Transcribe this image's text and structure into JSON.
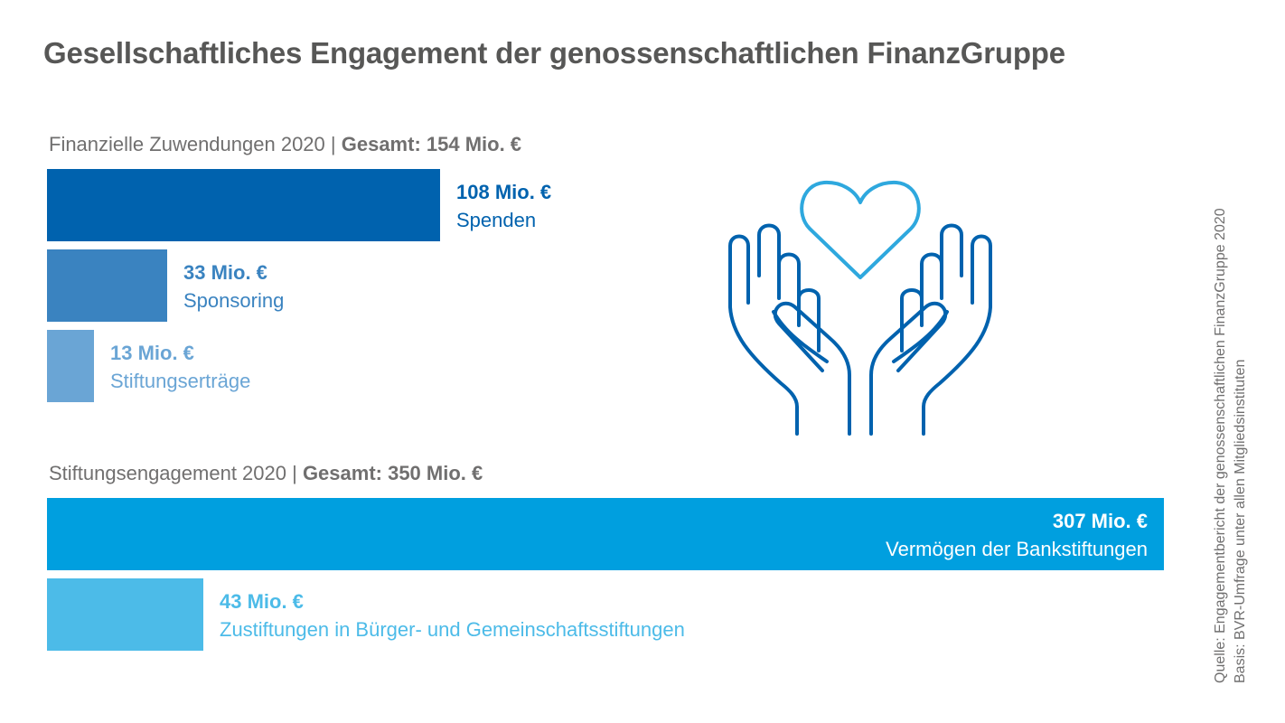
{
  "title": "Gesellschaftliches Engagement der genossenschaftlichen FinanzGruppe",
  "icon": "heart-in-hands-icon",
  "colors": {
    "spenden": "#0062ae",
    "sponsoring": "#3a83c0",
    "stiftungsertraege": "#6aa5d5",
    "bankstiftungen": "#009fdf",
    "zustiftungen": "#4cbbe8",
    "title_text": "#575756",
    "muted_text": "#706f6f"
  },
  "source": {
    "line1": "Quelle: Engagementbericht der genossenschaftlichen FinanzGruppe 2020",
    "line2": "Basis: BVR-Umfrage unter allen Mitgliedsinstituten"
  },
  "chart_data": [
    {
      "type": "bar",
      "orientation": "horizontal",
      "title": "Finanzielle Zuwendungen 2020",
      "total_label": "Gesamt: 154 Mio. €",
      "unit": "Mio. €",
      "categories": [
        "Spenden",
        "Sponsoring",
        "Stiftungserträge"
      ],
      "values": [
        108,
        33,
        13
      ],
      "value_labels": [
        "108 Mio. €",
        "33 Mio. €",
        "13 Mio. €"
      ],
      "colors": [
        "#0062ae",
        "#3a83c0",
        "#6aa5d5"
      ]
    },
    {
      "type": "bar",
      "orientation": "horizontal",
      "title": "Stiftungsengagement 2020",
      "total_label": "Gesamt: 350 Mio. €",
      "unit": "Mio. €",
      "categories": [
        "Vermögen der Bankstiftungen",
        "Zustiftungen in Bürger- und Gemeinschaftsstiftungen"
      ],
      "values": [
        307,
        43
      ],
      "value_labels": [
        "307 Mio. €",
        "43 Mio. €"
      ],
      "colors": [
        "#009fdf",
        "#4cbbe8"
      ]
    }
  ]
}
